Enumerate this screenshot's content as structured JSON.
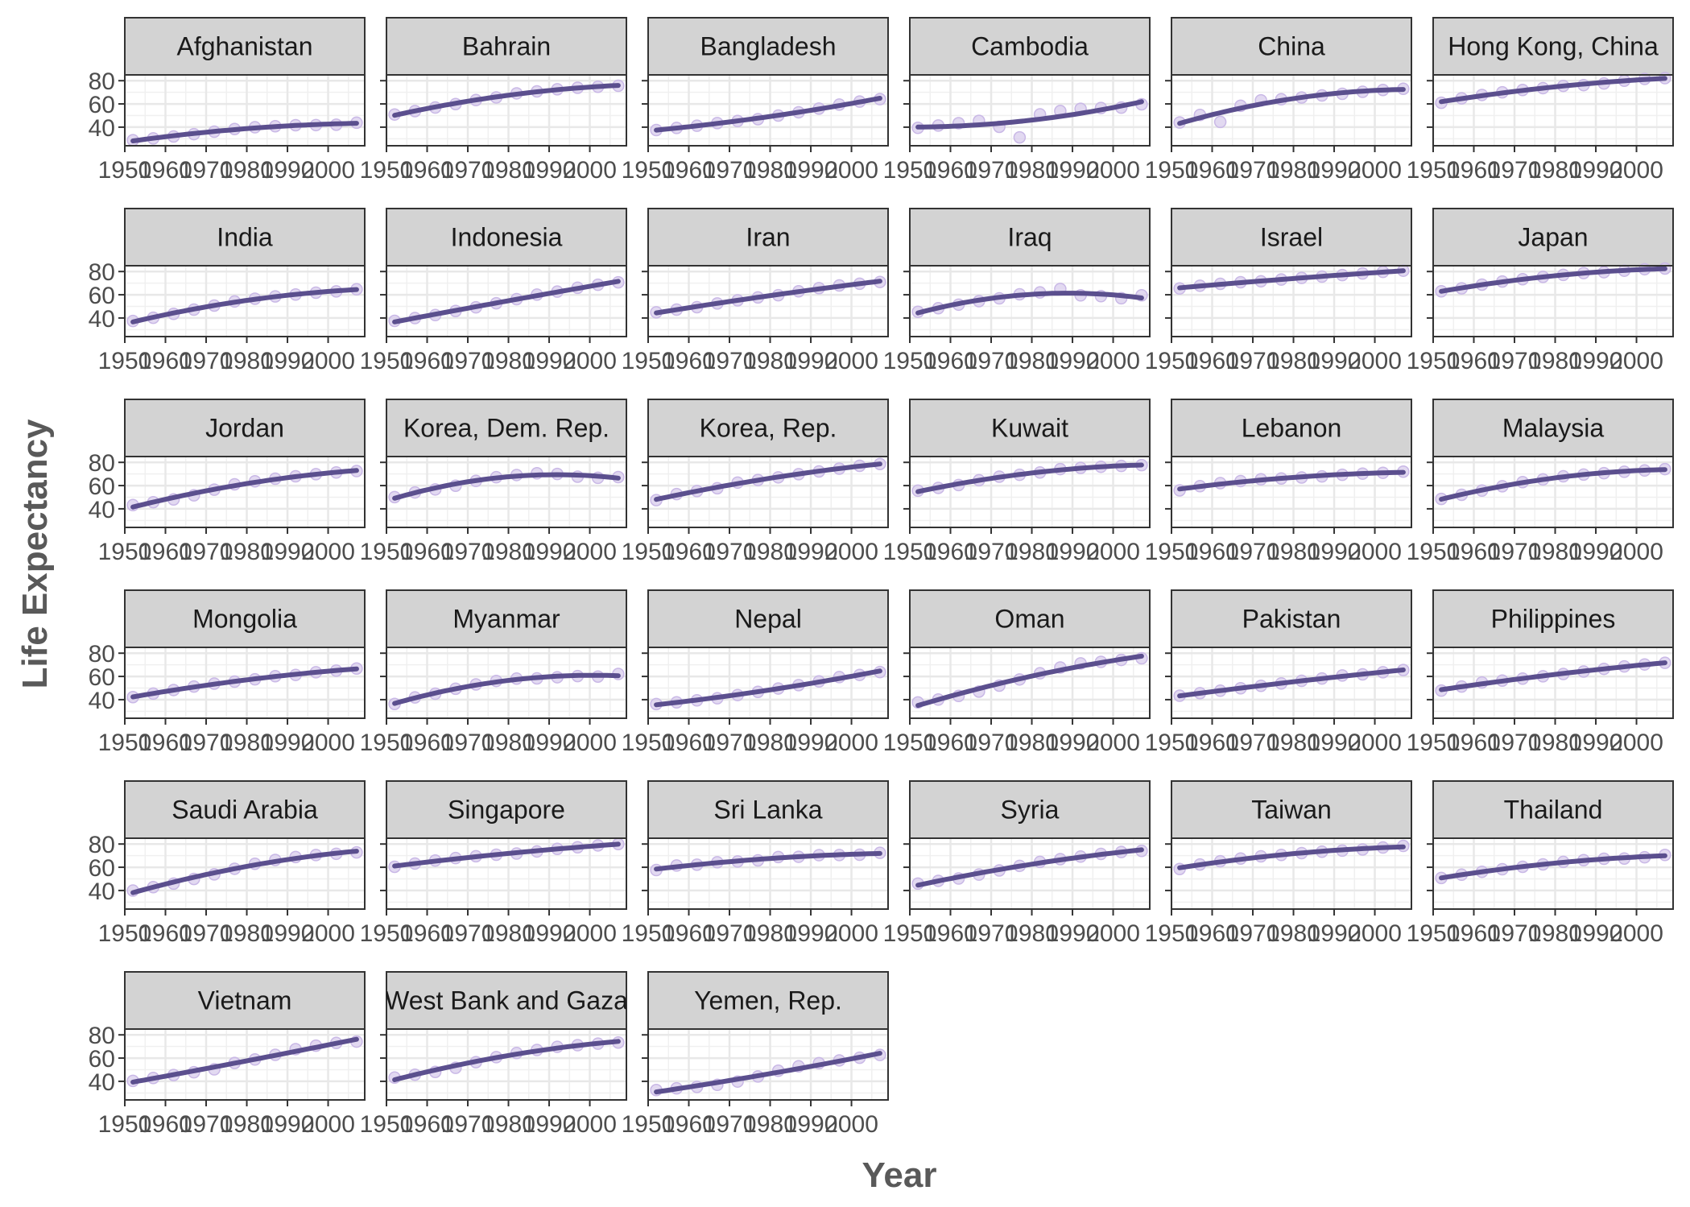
{
  "chart_data": {
    "type": "line",
    "xlabel": "Year",
    "ylabel": "Life Expectancy",
    "xlim": [
      1950,
      2009
    ],
    "ylim": [
      24,
      85
    ],
    "x_ticks": [
      1950,
      1960,
      1970,
      1980,
      1990,
      2000
    ],
    "x_tick_labels": [
      "1950",
      "1960",
      "1970",
      "1980",
      "1990",
      "2000"
    ],
    "y_ticks": [
      40,
      60,
      80
    ],
    "y_tick_labels": [
      "40",
      "60",
      "80"
    ],
    "grid": true,
    "colors": {
      "line": "#5B4F8E",
      "points": "#D8CCEC",
      "strip": "#D3D3D3",
      "panel_grid": "#E8E8E8"
    },
    "years": [
      1952,
      1957,
      1962,
      1967,
      1972,
      1977,
      1982,
      1987,
      1992,
      1997,
      2002,
      2007
    ],
    "panels": [
      {
        "name": "Afghanistan",
        "values": [
          28.8,
          30.3,
          32.0,
          34.0,
          36.1,
          38.4,
          39.9,
          40.8,
          41.7,
          41.8,
          42.1,
          43.8
        ]
      },
      {
        "name": "Bahrain",
        "values": [
          50.9,
          53.8,
          56.9,
          59.9,
          63.3,
          65.6,
          69.1,
          70.8,
          72.6,
          73.9,
          74.8,
          75.6
        ]
      },
      {
        "name": "Bangladesh",
        "values": [
          37.5,
          39.3,
          41.2,
          43.5,
          45.3,
          46.9,
          50.0,
          52.8,
          56.0,
          59.4,
          62.0,
          64.1
        ]
      },
      {
        "name": "Cambodia",
        "values": [
          39.4,
          41.4,
          43.4,
          45.4,
          40.3,
          31.2,
          51.0,
          53.9,
          55.8,
          56.5,
          56.8,
          59.7
        ]
      },
      {
        "name": "China",
        "values": [
          44.0,
          50.5,
          44.5,
          58.4,
          63.1,
          64.0,
          65.5,
          67.3,
          68.7,
          70.4,
          72.0,
          73.0
        ]
      },
      {
        "name": "Hong Kong, China",
        "values": [
          61.0,
          64.8,
          67.7,
          70.0,
          72.0,
          73.6,
          75.5,
          76.2,
          77.6,
          80.0,
          81.5,
          82.2
        ]
      },
      {
        "name": "India",
        "values": [
          37.4,
          40.2,
          43.6,
          47.2,
          50.7,
          54.2,
          56.6,
          58.6,
          60.2,
          61.8,
          62.9,
          64.7
        ]
      },
      {
        "name": "Indonesia",
        "values": [
          37.5,
          39.9,
          42.5,
          46.0,
          49.2,
          52.7,
          56.2,
          60.1,
          62.7,
          66.0,
          68.6,
          70.7
        ]
      },
      {
        "name": "Iran",
        "values": [
          44.9,
          47.2,
          49.3,
          52.5,
          55.2,
          57.7,
          59.6,
          63.0,
          65.7,
          68.0,
          69.5,
          71.0
        ]
      },
      {
        "name": "Iraq",
        "values": [
          45.3,
          48.4,
          51.5,
          54.5,
          56.9,
          60.4,
          62.0,
          65.0,
          59.5,
          58.8,
          57.0,
          59.5
        ]
      },
      {
        "name": "Israel",
        "values": [
          65.4,
          67.8,
          69.4,
          70.8,
          71.6,
          73.1,
          74.5,
          75.6,
          76.9,
          78.3,
          79.7,
          80.7
        ]
      },
      {
        "name": "Japan",
        "values": [
          63.0,
          65.5,
          68.7,
          71.4,
          73.4,
          75.4,
          77.1,
          78.7,
          79.4,
          80.7,
          82.0,
          82.6
        ]
      },
      {
        "name": "Jordan",
        "values": [
          43.2,
          45.7,
          48.1,
          51.6,
          56.5,
          61.1,
          63.7,
          65.9,
          68.0,
          69.8,
          71.3,
          72.5
        ]
      },
      {
        "name": "Korea, Dem. Rep.",
        "values": [
          50.1,
          54.1,
          56.7,
          59.9,
          64.0,
          67.2,
          69.1,
          70.6,
          70.0,
          67.7,
          66.7,
          67.3
        ]
      },
      {
        "name": "Korea, Rep.",
        "values": [
          47.5,
          52.7,
          55.3,
          57.7,
          62.6,
          64.8,
          67.1,
          69.8,
          72.2,
          74.6,
          77.0,
          78.6
        ]
      },
      {
        "name": "Kuwait",
        "values": [
          55.6,
          58.0,
          60.5,
          64.6,
          67.7,
          69.3,
          71.3,
          74.2,
          75.2,
          76.2,
          76.9,
          77.6
        ]
      },
      {
        "name": "Lebanon",
        "values": [
          55.9,
          59.5,
          62.1,
          63.9,
          65.4,
          66.1,
          66.98,
          67.9,
          69.3,
          70.3,
          71.0,
          72.0
        ]
      },
      {
        "name": "Malaysia",
        "values": [
          48.5,
          52.1,
          55.7,
          59.4,
          63.0,
          65.3,
          68.0,
          69.5,
          70.7,
          71.9,
          73.0,
          74.2
        ]
      },
      {
        "name": "Mongolia",
        "values": [
          42.2,
          45.2,
          48.3,
          51.3,
          53.8,
          55.5,
          57.5,
          60.2,
          61.3,
          63.6,
          65.0,
          66.8
        ]
      },
      {
        "name": "Myanmar",
        "values": [
          36.3,
          41.9,
          45.1,
          49.4,
          53.1,
          56.1,
          58.1,
          58.3,
          59.3,
          60.3,
          59.9,
          62.1
        ]
      },
      {
        "name": "Nepal",
        "values": [
          36.2,
          37.7,
          39.4,
          41.2,
          43.97,
          46.7,
          49.6,
          52.5,
          55.7,
          59.4,
          61.3,
          63.8
        ]
      },
      {
        "name": "Oman",
        "values": [
          37.6,
          40.1,
          43.2,
          46.99,
          52.1,
          57.4,
          62.7,
          67.7,
          71.2,
          72.5,
          74.2,
          75.6
        ]
      },
      {
        "name": "Pakistan",
        "values": [
          43.4,
          45.6,
          47.7,
          49.8,
          51.9,
          54.0,
          56.2,
          58.2,
          60.8,
          61.8,
          63.6,
          65.5
        ]
      },
      {
        "name": "Philippines",
        "values": [
          47.8,
          51.3,
          54.8,
          56.4,
          58.1,
          60.1,
          62.1,
          64.2,
          66.5,
          68.6,
          70.3,
          71.7
        ]
      },
      {
        "name": "Saudi Arabia",
        "values": [
          39.9,
          42.9,
          45.9,
          49.9,
          53.9,
          58.7,
          63.0,
          66.3,
          68.8,
          70.5,
          71.6,
          72.8
        ]
      },
      {
        "name": "Singapore",
        "values": [
          60.4,
          63.2,
          65.8,
          67.9,
          69.5,
          70.8,
          71.8,
          73.6,
          75.8,
          77.2,
          78.8,
          80.0
        ]
      },
      {
        "name": "Sri Lanka",
        "values": [
          57.6,
          61.5,
          62.2,
          64.3,
          65.0,
          65.9,
          68.8,
          69.0,
          70.4,
          70.5,
          70.8,
          72.4
        ]
      },
      {
        "name": "Syria",
        "values": [
          45.9,
          48.3,
          50.3,
          53.7,
          57.3,
          61.2,
          64.6,
          67.0,
          69.2,
          71.5,
          73.1,
          74.1
        ]
      },
      {
        "name": "Taiwan",
        "values": [
          58.5,
          62.4,
          65.2,
          67.5,
          69.4,
          70.6,
          72.2,
          73.4,
          74.3,
          75.3,
          76.99,
          78.4
        ]
      },
      {
        "name": "Thailand",
        "values": [
          50.8,
          53.6,
          56.1,
          58.3,
          60.4,
          62.5,
          64.6,
          66.1,
          67.3,
          67.5,
          68.6,
          70.6
        ]
      },
      {
        "name": "Vietnam",
        "values": [
          40.4,
          42.9,
          45.4,
          47.8,
          50.3,
          55.8,
          58.8,
          62.8,
          67.7,
          70.7,
          73.0,
          74.2
        ]
      },
      {
        "name": "West Bank and Gaza",
        "values": [
          43.2,
          45.7,
          48.1,
          51.6,
          56.5,
          60.8,
          64.4,
          67.0,
          69.7,
          71.1,
          72.4,
          73.4
        ]
      },
      {
        "name": "Yemen, Rep.",
        "values": [
          32.5,
          33.97,
          35.2,
          36.98,
          39.8,
          44.2,
          49.1,
          52.9,
          55.6,
          58.0,
          60.3,
          62.7
        ]
      }
    ]
  }
}
